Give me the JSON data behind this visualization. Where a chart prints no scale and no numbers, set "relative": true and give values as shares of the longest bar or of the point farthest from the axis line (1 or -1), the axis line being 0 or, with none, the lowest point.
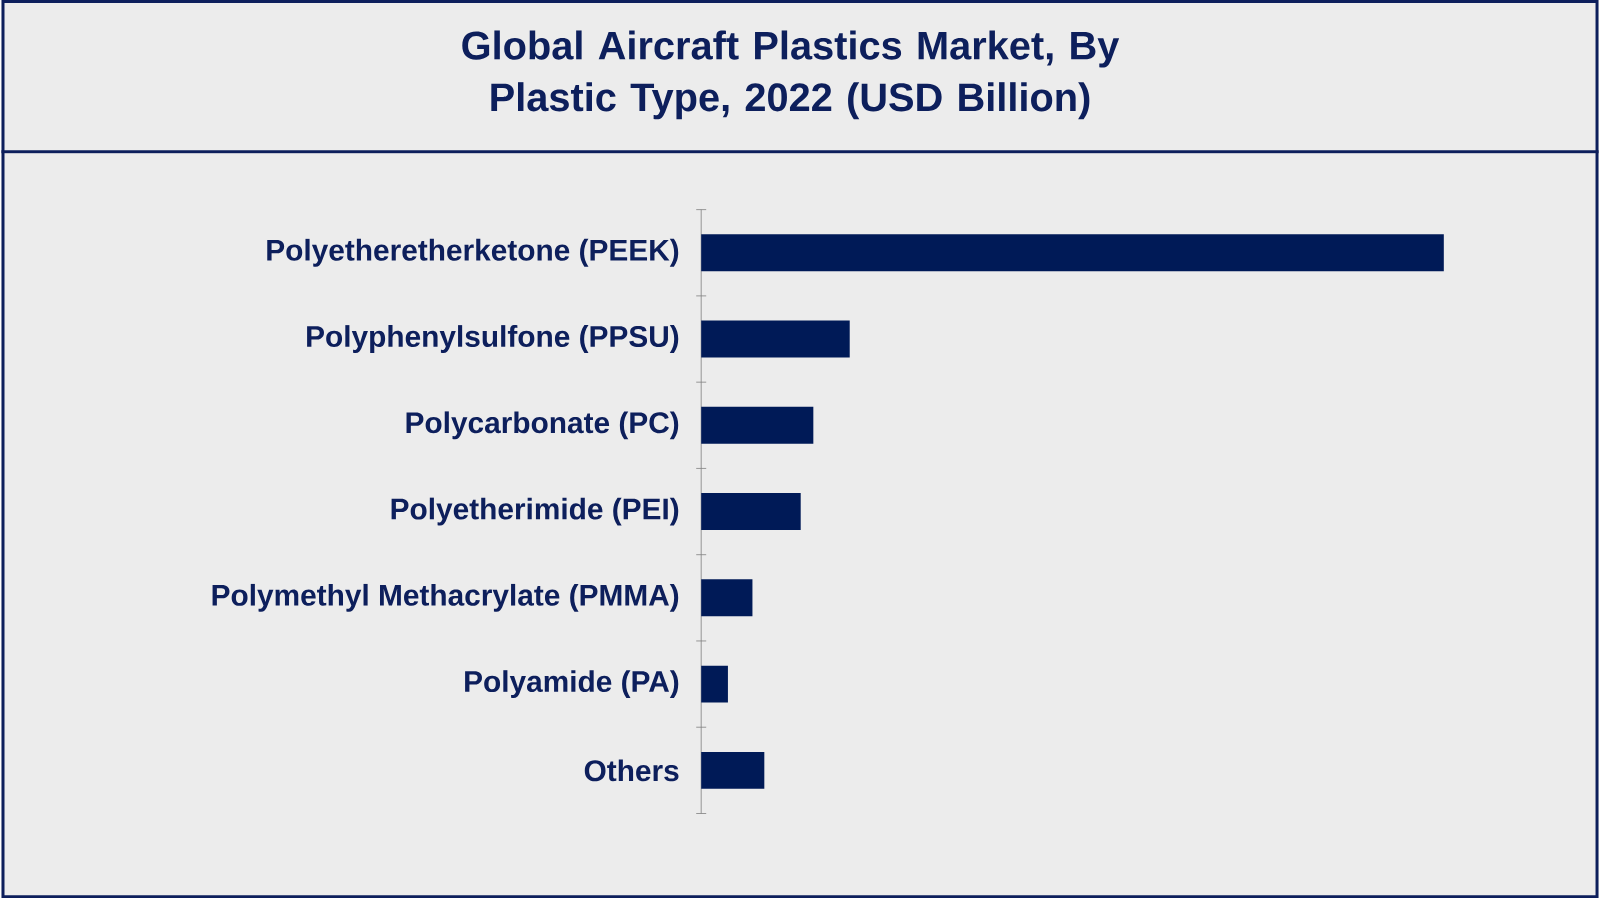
{
  "chart_data": {
    "type": "bar",
    "title": "Global Aircraft Plastics Market, By Plastic Type, 2022 (USD Billion)",
    "categories": [
      "Polyetheretherketone (PEEK)",
      "Polyphenylsulfone (PPSU)",
      "Polycarbonate (PC)",
      "Polyetherimide (PEI)",
      "Polymethyl Methacrylate (PMMA)",
      "Polyamide (PA)",
      "Others"
    ],
    "values": [
      1,
      0.2,
      0.151,
      0.134,
      0.069,
      0.036,
      0.085
    ],
    "color": "#001a57",
    "orientation": "horizontal",
    "relative": true
  }
}
